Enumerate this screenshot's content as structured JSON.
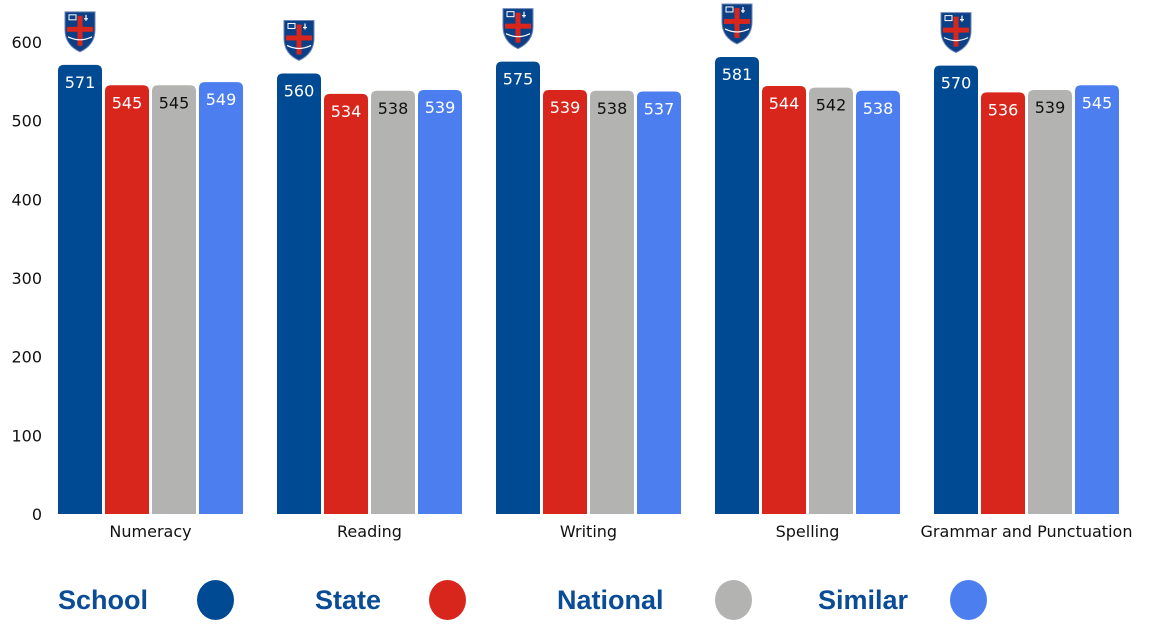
{
  "chart_data": {
    "type": "bar",
    "categories": [
      "Numeracy",
      "Reading",
      "Writing",
      "Spelling",
      "Grammar and Punctuation"
    ],
    "series": [
      {
        "name": "School",
        "color": "#004a93",
        "label_color": "#ffffff",
        "values": [
          571,
          560,
          575,
          581,
          570
        ]
      },
      {
        "name": "State",
        "color": "#d9261c",
        "label_color": "#ffffff",
        "values": [
          545,
          534,
          539,
          544,
          536
        ]
      },
      {
        "name": "National",
        "color": "#b3b3b1",
        "label_color": "#111111",
        "values": [
          545,
          538,
          538,
          542,
          539
        ]
      },
      {
        "name": "Similar",
        "color": "#4d7ef0",
        "label_color": "#ffffff",
        "values": [
          549,
          539,
          537,
          538,
          545
        ]
      }
    ],
    "yticks": [
      0,
      100,
      200,
      300,
      400,
      500,
      600
    ],
    "ylim": [
      0,
      600
    ],
    "grid": false,
    "legend_position": "bottom",
    "legend_text_color": "#0b4c96",
    "marker_icon": "school-crest-icon"
  }
}
